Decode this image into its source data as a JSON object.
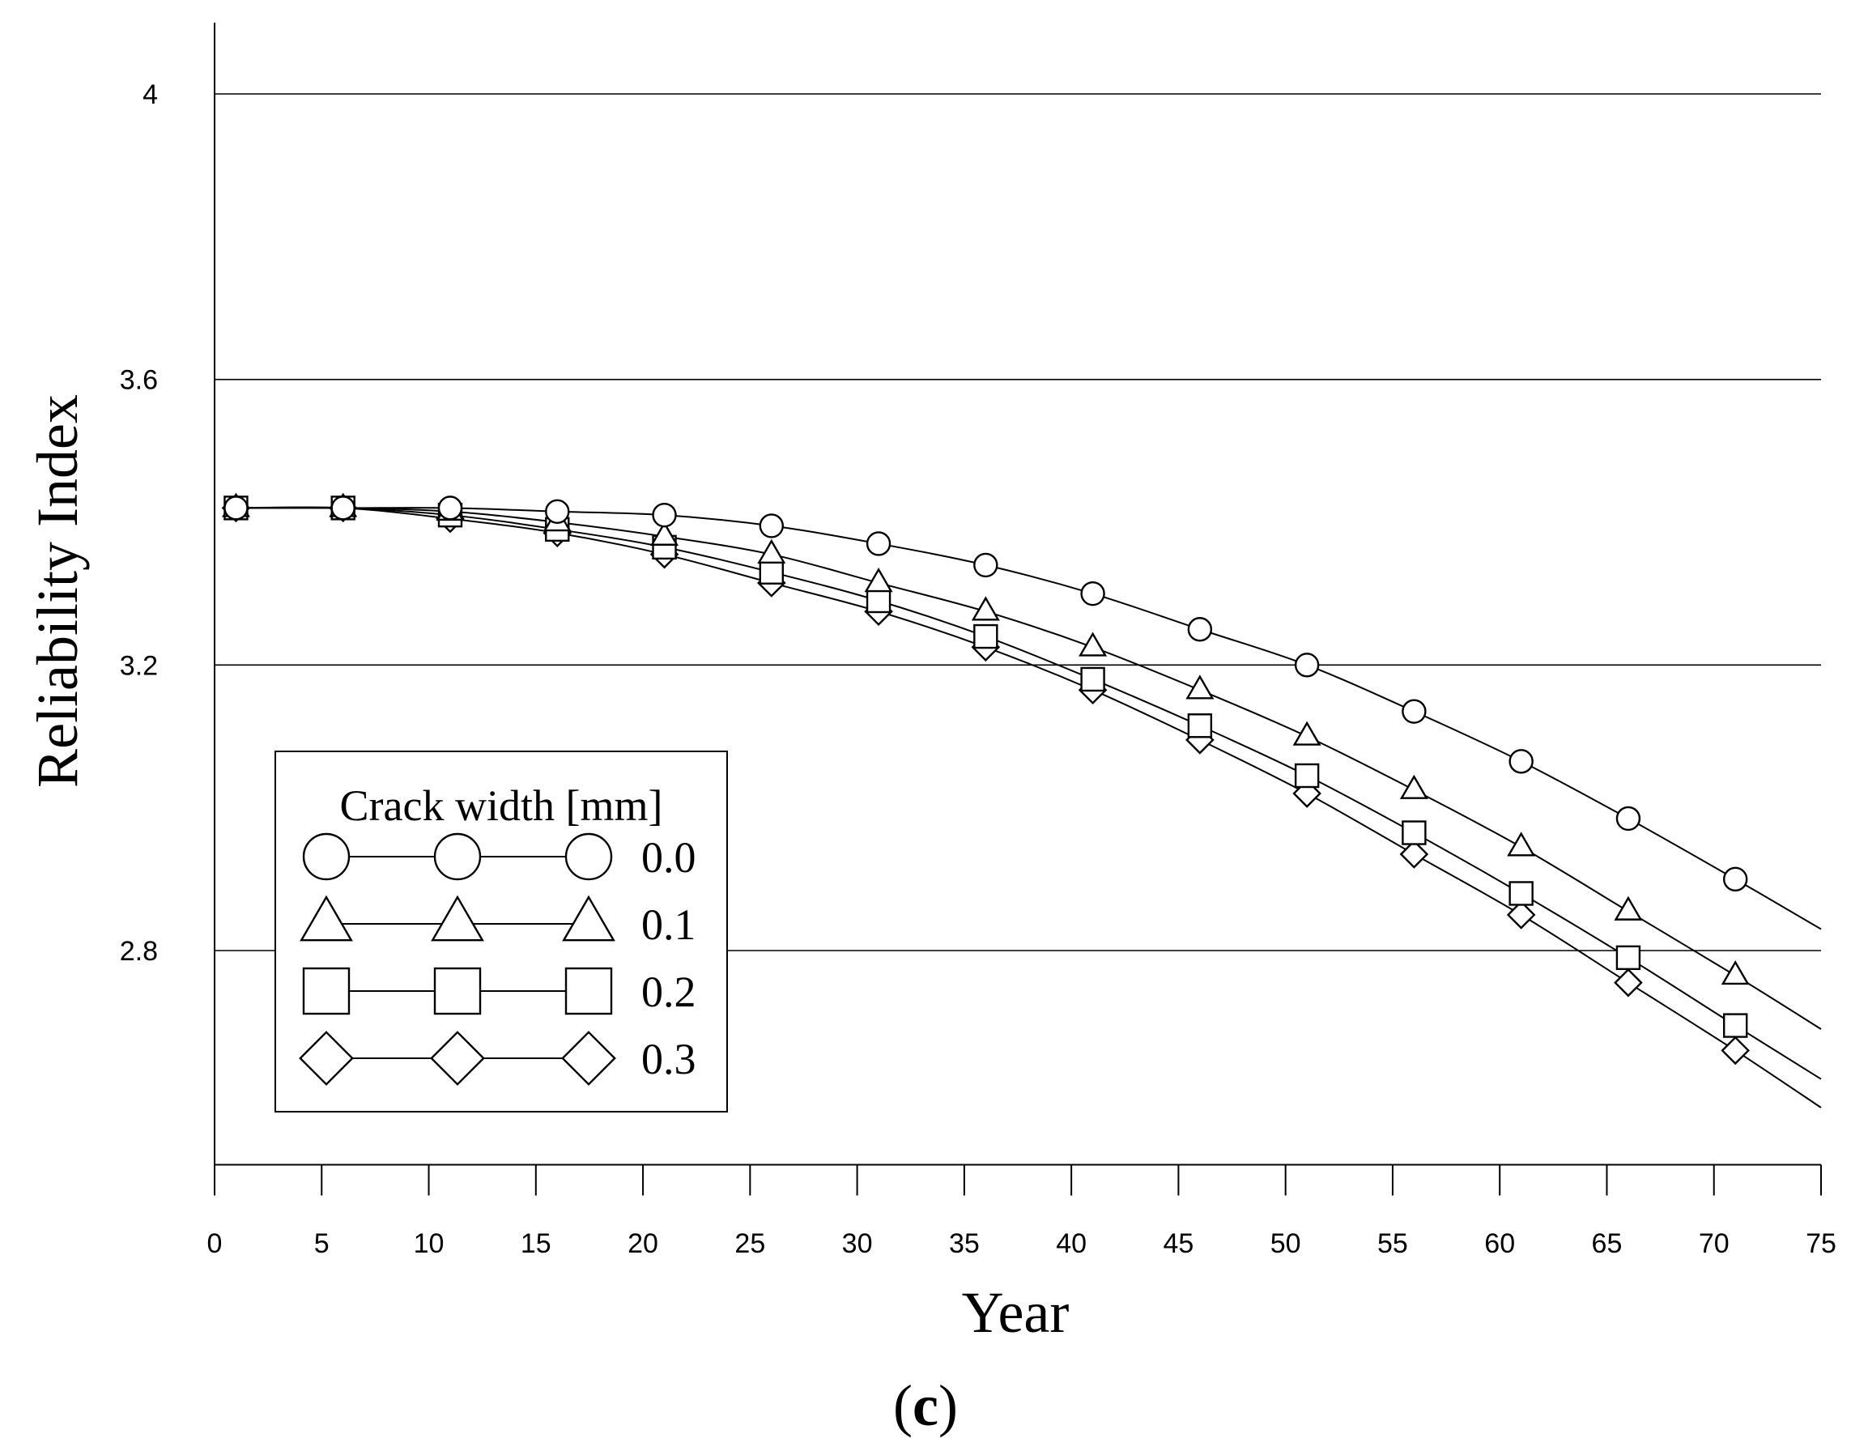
{
  "chart_data": {
    "type": "line",
    "title": "",
    "panel_label": {
      "open": "(",
      "letter": "c",
      "close": ")"
    },
    "xlabel": "Year",
    "ylabel": "Reliability Index",
    "xlim": [
      0,
      75
    ],
    "ylim": [
      2.5,
      4.1
    ],
    "xticks": [
      0,
      5,
      10,
      15,
      20,
      25,
      30,
      35,
      40,
      45,
      50,
      55,
      60,
      65,
      70,
      75
    ],
    "yticks": [
      2.8,
      3.2,
      3.6,
      4
    ],
    "ytick_labels": [
      "2.8",
      "3.2",
      "3.6",
      "4"
    ],
    "grid": "horizontal",
    "legend": {
      "title": "Crack width [mm]",
      "position": "bottom-left"
    },
    "x": [
      1,
      6,
      11,
      16,
      21,
      26,
      31,
      36,
      41,
      46,
      51,
      56,
      61,
      66,
      71
    ],
    "series": [
      {
        "name": "0.0",
        "marker": "circle",
        "values": [
          3.42,
          3.42,
          3.42,
          3.415,
          3.41,
          3.395,
          3.37,
          3.34,
          3.3,
          3.25,
          3.2,
          3.135,
          3.065,
          2.985,
          2.9
        ],
        "curve_end": {
          "x": 75,
          "y": 2.83
        }
      },
      {
        "name": "0.1",
        "marker": "triangle",
        "values": [
          3.42,
          3.42,
          3.415,
          3.4,
          3.38,
          3.355,
          3.315,
          3.275,
          3.225,
          3.165,
          3.1,
          3.025,
          2.945,
          2.855,
          2.765
        ],
        "curve_end": {
          "x": 75,
          "y": 2.69
        }
      },
      {
        "name": "0.2",
        "marker": "square",
        "values": [
          3.42,
          3.42,
          3.41,
          3.39,
          3.365,
          3.33,
          3.29,
          3.24,
          3.18,
          3.115,
          3.045,
          2.965,
          2.88,
          2.79,
          2.695
        ],
        "curve_end": {
          "x": 75,
          "y": 2.62
        }
      },
      {
        "name": "0.3",
        "marker": "diamond",
        "values": [
          3.42,
          3.42,
          3.405,
          3.385,
          3.355,
          3.315,
          3.275,
          3.225,
          3.165,
          3.095,
          3.02,
          2.935,
          2.85,
          2.755,
          2.66
        ],
        "curve_end": {
          "x": 75,
          "y": 2.58
        }
      }
    ]
  }
}
